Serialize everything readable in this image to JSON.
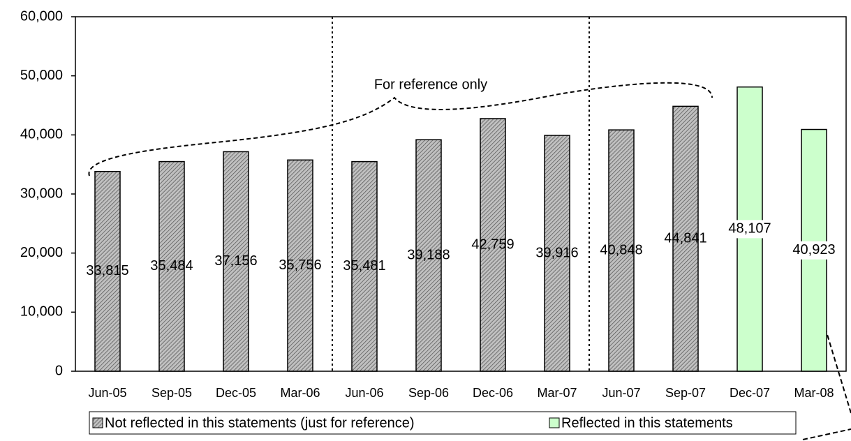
{
  "chart_data": {
    "type": "bar",
    "categories": [
      "Jun-05",
      "Sep-05",
      "Dec-05",
      "Mar-06",
      "Jun-06",
      "Sep-06",
      "Dec-06",
      "Mar-07",
      "Jun-07",
      "Sep-07",
      "Dec-07",
      "Mar-08"
    ],
    "series": [
      {
        "name": "Not reflected in this statements (just for reference)",
        "color": "#c0c0c0",
        "values": [
          33815,
          35484,
          37156,
          35756,
          35481,
          39188,
          42759,
          39916,
          40848,
          44841,
          null,
          null
        ],
        "value_labels": [
          "33,815",
          "35,484",
          "37,156",
          "35,756",
          "35,481",
          "39,188",
          "42,759",
          "39,916",
          "40,848",
          "44,841",
          null,
          null
        ]
      },
      {
        "name": "Reflected in this statements",
        "color": "#ccffcc",
        "values": [
          null,
          null,
          null,
          null,
          null,
          null,
          null,
          null,
          null,
          null,
          48107,
          40923
        ],
        "value_labels": [
          null,
          null,
          null,
          null,
          null,
          null,
          null,
          null,
          null,
          null,
          "48,107",
          "40,923"
        ]
      }
    ],
    "ylim": [
      0,
      60000
    ],
    "yticks": [
      0,
      {
        "value": 10000,
        "label": "10,000"
      },
      {
        "value": 20000,
        "label": "20,000"
      },
      {
        "value": 30000,
        "label": "30,000"
      },
      {
        "value": 40000,
        "label": "40,000"
      },
      {
        "value": 50000,
        "label": "50,000"
      },
      {
        "value": 60000,
        "label": "60,000"
      }
    ],
    "annotation": "For reference only",
    "legend": "bottom"
  }
}
